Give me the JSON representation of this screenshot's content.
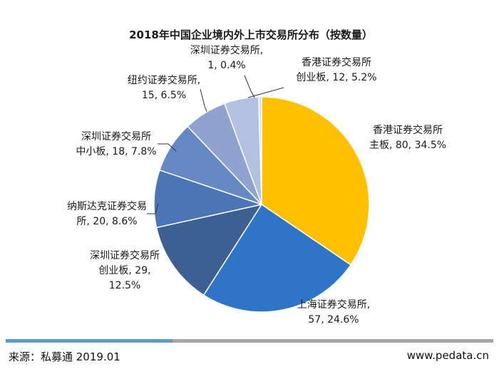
{
  "chart_data": {
    "type": "pie",
    "title": "2018年中国企业境内外上市交易所分布（按数量）",
    "slices": [
      {
        "label_lines": [
          "香港证券交易所",
          "主板, 80, 34.5%"
        ],
        "value": 80,
        "percent": 34.5,
        "color": "#ffc000"
      },
      {
        "label_lines": [
          "上海证券交易所,",
          "57, 24.6%"
        ],
        "value": 57,
        "percent": 24.6,
        "color": "#2e75c8"
      },
      {
        "label_lines": [
          "深圳证券交易所",
          "创业板, 29,",
          "12.5%"
        ],
        "value": 29,
        "percent": 12.5,
        "color": "#3c5f94"
      },
      {
        "label_lines": [
          "纳斯达克证券交易",
          "所, 20, 8.6%"
        ],
        "value": 20,
        "percent": 8.6,
        "color": "#4a76b8"
      },
      {
        "label_lines": [
          "深圳证券交易所",
          "中小板, 18, 7.8%"
        ],
        "value": 18,
        "percent": 7.8,
        "color": "#6689c4"
      },
      {
        "label_lines": [
          "纽约证券交易所,",
          "15, 6.5%"
        ],
        "value": 15,
        "percent": 6.5,
        "color": "#8ea3d0"
      },
      {
        "label_lines": [
          "香港证券交易所",
          "创业板, 12, 5.2%"
        ],
        "value": 12,
        "percent": 5.2,
        "color": "#b3c1e0"
      },
      {
        "label_lines": [
          "深圳证券交易所,",
          "1, 0.4%"
        ],
        "value": 1,
        "percent": 0.4,
        "color": "#d3dbee"
      }
    ]
  },
  "footer": {
    "source": "来源：私募通 2019.01",
    "site": "www.pedata.cn"
  }
}
